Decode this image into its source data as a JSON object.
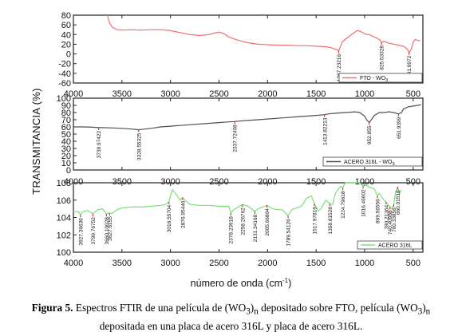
{
  "chart_data": [
    {
      "type": "line",
      "xlim": [
        4000,
        400
      ],
      "ylim": [
        -60,
        80
      ],
      "yticks": [
        -60,
        -40,
        -20,
        0,
        20,
        40,
        60,
        80
      ],
      "xticks": [
        4000,
        3500,
        3000,
        2500,
        2000,
        1500,
        1000,
        500
      ],
      "color": "#f07070",
      "series": [
        {
          "name": "FTO - WO3",
          "x": [
            3650,
            3630,
            3600,
            3550,
            3500,
            3400,
            3300,
            3200,
            3100,
            3000,
            2900,
            2800,
            2700,
            2600,
            2550,
            2500,
            2450,
            2400,
            2300,
            2200,
            2100,
            2000,
            1900,
            1800,
            1700,
            1600,
            1500,
            1400,
            1350,
            1300,
            1280,
            1267,
            1250,
            1230,
            1200,
            1150,
            1100,
            1080,
            1050,
            1020,
            1000,
            980,
            950,
            900,
            850,
            826,
            800,
            750,
            700,
            650,
            600,
            560,
            542,
            520,
            500,
            480,
            450,
            430
          ],
          "y": [
            80,
            65,
            55,
            50,
            49,
            50,
            49,
            50,
            50,
            48,
            44,
            40,
            38,
            40,
            43,
            45,
            42,
            35,
            28,
            23,
            20,
            19,
            18,
            18,
            17,
            17,
            16,
            15,
            13,
            10,
            8,
            6,
            15,
            25,
            30,
            38,
            45,
            48,
            47,
            44,
            42,
            40,
            40,
            35,
            30,
            24,
            26,
            22,
            20,
            18,
            16,
            10,
            3,
            10,
            24,
            30,
            28,
            27
          ]
        }
      ],
      "annotations": [
        {
          "x": 1267,
          "label": "1267.23216"
        },
        {
          "x": 826,
          "label": "825.53328"
        },
        {
          "x": 542,
          "label": "541.9972"
        }
      ],
      "legend": {
        "label": "FTO - WO",
        "sub": "3",
        "position": "bottom-right"
      }
    },
    {
      "type": "line",
      "xlim": [
        4000,
        400
      ],
      "ylim": [
        0,
        100
      ],
      "yticks": [
        0,
        10,
        20,
        30,
        40,
        50,
        60,
        70,
        80,
        90,
        100
      ],
      "xticks": [
        4000,
        3500,
        3000,
        2500,
        2000,
        1500,
        1000,
        500
      ],
      "color": "#505050",
      "series": [
        {
          "name": "ACERO 316L - WO3",
          "x": [
            4000,
            3900,
            3800,
            3740,
            3700,
            3600,
            3500,
            3400,
            3328,
            3300,
            3200,
            3100,
            3000,
            2900,
            2800,
            2700,
            2600,
            2500,
            2400,
            2338,
            2300,
            2200,
            2100,
            2000,
            1900,
            1800,
            1700,
            1600,
            1500,
            1413,
            1380,
            1300,
            1200,
            1100,
            1050,
            1000,
            980,
            953,
            930,
            900,
            850,
            800,
            750,
            700,
            651,
            620,
            600,
            550,
            500,
            450,
            420
          ],
          "y": [
            60,
            60,
            59.5,
            59,
            59,
            58.5,
            58,
            57,
            56,
            56.5,
            58,
            60,
            61,
            62,
            63,
            64,
            65,
            66,
            67,
            67.5,
            68,
            69,
            70,
            71,
            72,
            73,
            74,
            75,
            76,
            77,
            78,
            79,
            80,
            81,
            80,
            75,
            70,
            66,
            70,
            76,
            80,
            80,
            81,
            80,
            78,
            80,
            85,
            88,
            89,
            90,
            91
          ]
        }
      ],
      "annotations": [
        {
          "x": 3740,
          "label": "3739.97422"
        },
        {
          "x": 3328,
          "label": "3328.55325"
        },
        {
          "x": 2338,
          "label": "2337.72408"
        },
        {
          "x": 1413,
          "label": "1413.82213"
        },
        {
          "x": 953,
          "label": "952.855"
        },
        {
          "x": 651,
          "label": "651.9399"
        }
      ],
      "legend": {
        "label": "ACERO 316L - WO",
        "sub": "3",
        "position": "bottom-right"
      }
    },
    {
      "type": "line",
      "xlim": [
        4000,
        400
      ],
      "ylim": [
        100,
        108
      ],
      "yticks": [
        100,
        102,
        104,
        106,
        108
      ],
      "xticks": [
        4000,
        3500,
        3000,
        2500,
        2000,
        1500,
        1000,
        500
      ],
      "color": "#7be07b",
      "series": [
        {
          "name": "ACERO 316L",
          "x": [
            4000,
            3950,
            3927,
            3900,
            3850,
            3799,
            3750,
            3700,
            3660,
            3640,
            3620,
            3600,
            3550,
            3500,
            3400,
            3300,
            3200,
            3100,
            3050,
            3016,
            3000,
            2980,
            2950,
            2900,
            2876,
            2850,
            2800,
            2700,
            2600,
            2500,
            2400,
            2379,
            2350,
            2300,
            2259,
            2200,
            2131,
            2100,
            2050,
            2006,
            1950,
            1900,
            1850,
            1789,
            1750,
            1700,
            1650,
            1600,
            1550,
            1518,
            1480,
            1450,
            1400,
            1359,
            1330,
            1300,
            1250,
            1225,
            1200,
            1150,
            1100,
            1050,
            1016,
            1000,
            950,
            900,
            869,
            850,
            800,
            780,
            760,
            740,
            720,
            700,
            680,
            660,
            640,
            620
          ],
          "y": [
            104.6,
            104.7,
            104.3,
            104.7,
            104.8,
            104.4,
            104.9,
            105.0,
            104.4,
            104.5,
            104.5,
            104.5,
            104.9,
            105.1,
            105.2,
            105.2,
            105.3,
            105.4,
            105.5,
            105.8,
            106.5,
            107.2,
            106.8,
            106.0,
            106.3,
            106.0,
            105.5,
            105.4,
            105.4,
            105.3,
            105.3,
            104.5,
            104.9,
            105.2,
            105.5,
            105.3,
            104.7,
            105.0,
            105.2,
            105.4,
            105.0,
            104.9,
            104.9,
            104.2,
            104.9,
            105.1,
            105.3,
            106.2,
            106.5,
            105.6,
            104.8,
            105.0,
            106.0,
            105.6,
            105.5,
            106.8,
            107.6,
            107.4,
            108.1,
            108.6,
            108.3,
            108.0,
            107.6,
            107.8,
            107.5,
            107.3,
            106.5,
            106.8,
            106.0,
            105.8,
            105.5,
            105.2,
            105.0,
            105.5,
            107.0,
            107.5,
            106.8,
            107.2
          ]
        }
      ],
      "annotations": [
        {
          "x": 3927,
          "label": "3927.36636"
        },
        {
          "x": 3799,
          "label": "3799.76752"
        },
        {
          "x": 3660,
          "label": "3660.10028"
        },
        {
          "x": 3627,
          "label": "3627.6155"
        },
        {
          "x": 3016,
          "label": "3016.55704"
        },
        {
          "x": 2876,
          "label": "2876.95446"
        },
        {
          "x": 2379,
          "label": "2378.23918"
        },
        {
          "x": 2259,
          "label": "2258.26762"
        },
        {
          "x": 2131,
          "label": "2131.34168"
        },
        {
          "x": 2006,
          "label": "2005.66804"
        },
        {
          "x": 1789,
          "label": "1789.54126"
        },
        {
          "x": 1518,
          "label": "1517.97819"
        },
        {
          "x": 1359,
          "label": "1358.81528"
        },
        {
          "x": 1225,
          "label": "1224.79618"
        },
        {
          "x": 1016,
          "label": "1016.46602"
        },
        {
          "x": 869,
          "label": "869.56556"
        },
        {
          "x": 780,
          "label": "780.21364"
        },
        {
          "x": 740,
          "label": "740.40988"
        },
        {
          "x": 700,
          "label": "700.33856"
        },
        {
          "x": 660,
          "label": "660.01518"
        }
      ],
      "legend": {
        "label": "ACERO 316L",
        "sub": "",
        "position": "bottom-right"
      }
    }
  ],
  "xlabel": "número de onda (cm",
  "xlabel_sup": "-1",
  "xlabel_close": ")",
  "ylabel": "TRANSMITANCIA (%)",
  "caption": {
    "label": "Figura 5.",
    "text1": " Espectros FTIR de una película de (WO",
    "sub1": "3",
    "close1": ")",
    "sub1n": "n",
    "text2": " depositado sobre FTO, película (WO",
    "sub2": "3",
    "close2": ")",
    "sub2n": "n",
    "line2": "depositada en una placa de acero 316L y placa de acero 316L."
  }
}
